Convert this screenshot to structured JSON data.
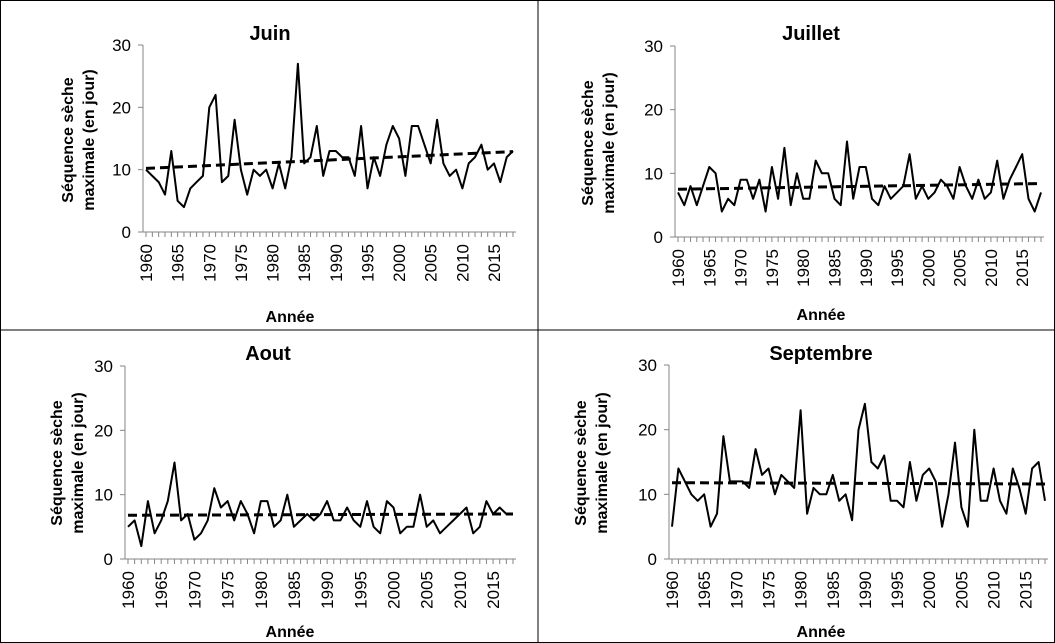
{
  "chart_data": [
    {
      "type": "line",
      "title": "Juin",
      "xlabel": "Année",
      "ylabel": [
        "Séquence sèche",
        "maximale (en jour)"
      ],
      "x_start": 1960,
      "x_end": 2018,
      "xticks": [
        1960,
        1965,
        1970,
        1975,
        1980,
        1985,
        1990,
        1995,
        2000,
        2005,
        2010,
        2015
      ],
      "ylim": [
        0,
        30
      ],
      "yticks": [
        0,
        10,
        20,
        30
      ],
      "series": [
        {
          "values": [
            10,
            9,
            8,
            6,
            13,
            5,
            4,
            7,
            8,
            9,
            20,
            22,
            8,
            9,
            18,
            10,
            6,
            10,
            9,
            10,
            7,
            11,
            7,
            12,
            27,
            11,
            12,
            17,
            9,
            13,
            13,
            12,
            12,
            9,
            17,
            7,
            12,
            9,
            14,
            17,
            15,
            9,
            17,
            17,
            14,
            11,
            18,
            11,
            9,
            10,
            7,
            11,
            12,
            14,
            10,
            11,
            8,
            12,
            13
          ]
        }
      ],
      "trend": [
        10.2,
        12.9
      ]
    },
    {
      "type": "line",
      "title": "Juillet",
      "xlabel": "Année",
      "ylabel": [
        "Séquence sèche",
        "maximale (en jour)"
      ],
      "x_start": 1960,
      "x_end": 2018,
      "xticks": [
        1960,
        1965,
        1970,
        1975,
        1980,
        1985,
        1990,
        1995,
        2000,
        2005,
        2010,
        2015
      ],
      "ylim": [
        0,
        30
      ],
      "yticks": [
        0,
        10,
        20,
        30
      ],
      "series": [
        {
          "values": [
            7,
            5,
            8,
            5,
            8,
            11,
            10,
            4,
            6,
            5,
            9,
            9,
            6,
            9,
            4,
            11,
            6,
            14,
            5,
            10,
            6,
            6,
            12,
            10,
            10,
            6,
            5,
            15,
            6,
            11,
            11,
            6,
            5,
            8,
            6,
            7,
            8,
            13,
            6,
            8,
            6,
            7,
            9,
            8,
            6,
            11,
            8,
            6,
            9,
            6,
            7,
            12,
            6,
            9,
            11,
            13,
            6,
            4,
            7
          ]
        }
      ],
      "trend": [
        7.5,
        8.4
      ]
    },
    {
      "type": "line",
      "title": "Aout",
      "xlabel": "Année",
      "ylabel": [
        "Séquence sèche",
        "maximale (en jour)"
      ],
      "x_start": 1960,
      "x_end": 2018,
      "xticks": [
        1960,
        1965,
        1970,
        1975,
        1980,
        1985,
        1990,
        1995,
        2000,
        2005,
        2010,
        2015
      ],
      "ylim": [
        0,
        30
      ],
      "yticks": [
        0,
        10,
        20,
        30
      ],
      "series": [
        {
          "values": [
            5,
            6,
            2,
            9,
            4,
            6,
            9,
            15,
            6,
            7,
            3,
            4,
            6,
            11,
            8,
            9,
            6,
            9,
            7,
            4,
            9,
            9,
            5,
            6,
            10,
            5,
            6,
            7,
            6,
            7,
            9,
            6,
            6,
            8,
            6,
            5,
            9,
            5,
            4,
            9,
            8,
            4,
            5,
            5,
            10,
            5,
            6,
            4,
            5,
            6,
            7,
            8,
            4,
            5,
            9,
            7,
            8,
            7,
            7
          ]
        }
      ],
      "trend": [
        6.8,
        7.0
      ]
    },
    {
      "type": "line",
      "title": "Septembre",
      "xlabel": "Année",
      "ylabel": [
        "Séquence sèche",
        "maximale (en jour)"
      ],
      "x_start": 1960,
      "x_end": 2018,
      "xticks": [
        1960,
        1965,
        1970,
        1975,
        1980,
        1985,
        1990,
        1995,
        2000,
        2005,
        2010,
        2015
      ],
      "ylim": [
        0,
        30
      ],
      "yticks": [
        0,
        10,
        20,
        30
      ],
      "series": [
        {
          "values": [
            5,
            14,
            12,
            10,
            9,
            10,
            5,
            7,
            19,
            12,
            12,
            12,
            11,
            17,
            13,
            14,
            10,
            13,
            12,
            11,
            23,
            7,
            11,
            10,
            10,
            13,
            9,
            10,
            6,
            20,
            24,
            15,
            14,
            16,
            9,
            9,
            8,
            15,
            9,
            13,
            14,
            12,
            5,
            10,
            18,
            8,
            5,
            20,
            9,
            9,
            14,
            9,
            7,
            14,
            11,
            7,
            14,
            15,
            9
          ]
        }
      ],
      "trend": [
        11.8,
        11.6
      ]
    }
  ]
}
